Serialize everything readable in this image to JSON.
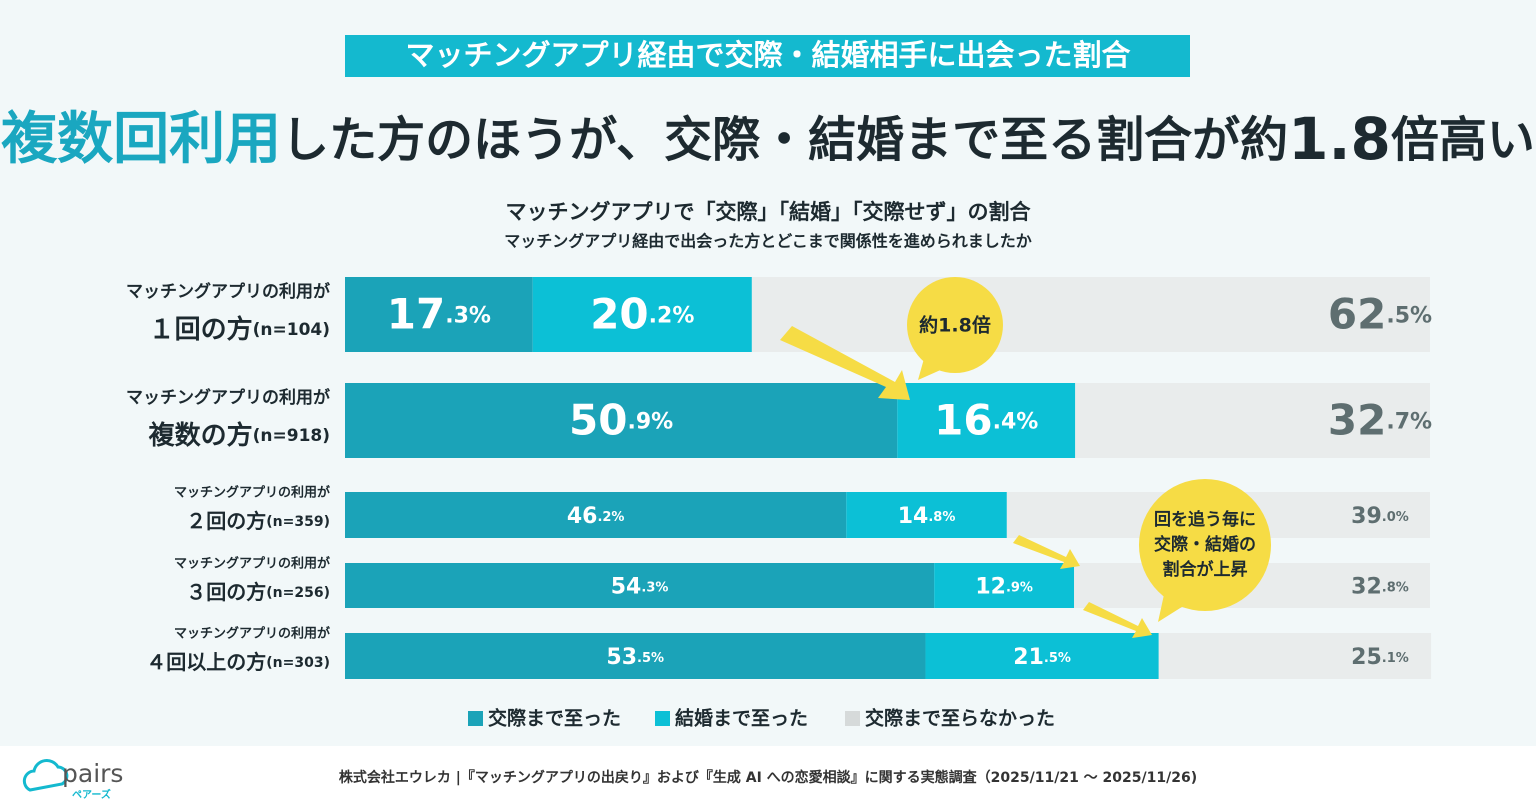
{
  "badge": "マッチングアプリ経由で交際・結婚相手に出会った割合",
  "headline": [
    "複数回利用",
    "した方のほうが、交際・結婚まで至る割合が約",
    "1.8",
    "倍高い"
  ],
  "chart_data": {
    "type": "stacked-bar",
    "title": "マッチングアプリで「交際」「結婚」「交際せず」の割合",
    "subtitle": "マッチングアプリ経由で出会った方とどこまで関係性を進められましたか",
    "category_prefix": [
      "マッチングアプリの利用が",
      "マッチングアプリの利用が",
      "マッチングアプリの利用が",
      "マッチングアプリの利用が",
      "マッチングアプリの利用が"
    ],
    "categories": [
      "１回の方",
      "複数の方",
      "２回の方",
      "３回の方",
      "４回以上の方"
    ],
    "sample_sizes": [
      "(n=104)",
      "(n=918)",
      "(n=359)",
      "(n=256)",
      "(n=303)"
    ],
    "xlim": [
      0,
      100
    ],
    "series": [
      {
        "name": "交際まで至った",
        "color": "#1ba3b8",
        "label_color": "#ffffff",
        "values": [
          17.3,
          50.9,
          46.2,
          54.3,
          53.5
        ],
        "value_labels": [
          "17.3%",
          "50.9%",
          "46.2%",
          "54.3%",
          "53.5%"
        ]
      },
      {
        "name": "結婚まで至った",
        "color": "#0cc0d6",
        "label_color": "#ffffff",
        "values": [
          20.2,
          16.4,
          14.8,
          12.9,
          21.5
        ],
        "value_labels": [
          "20.2%",
          "16.4%",
          "14.8%",
          "12.9%",
          "21.5%"
        ]
      },
      {
        "name": "交際まで至らなかった",
        "color": "#e9ecec",
        "label_color": "#5e6e70",
        "values": [
          62.5,
          32.7,
          39.0,
          32.8,
          25.1
        ],
        "value_labels": [
          "62.5%",
          "32.7%",
          "39.0%",
          "32.8%",
          "25.1%"
        ]
      }
    ],
    "annotations": [
      "約1.8倍",
      "回を追う毎に",
      "交際・結婚の",
      "割合が上昇"
    ]
  },
  "source": "株式会社エウレカ |『マッチングアプリの出戻り』および『生成 AI への恋愛相談』に関する実態調査（2025/11/21 ～ 2025/11/26)",
  "logo": {
    "name": "pairs",
    "kana": "ペアーズ"
  }
}
